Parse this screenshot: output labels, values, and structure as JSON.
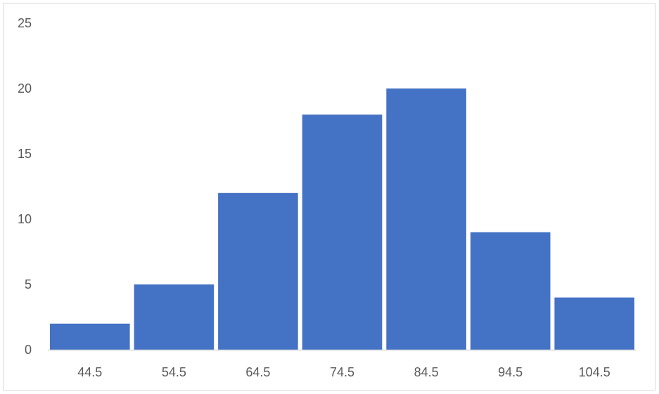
{
  "chart_data": {
    "type": "bar",
    "title": "",
    "xlabel": "",
    "ylabel": "",
    "categories": [
      "44.5",
      "54.5",
      "64.5",
      "74.5",
      "84.5",
      "94.5",
      "104.5"
    ],
    "values": [
      2,
      5,
      12,
      18,
      20,
      9,
      4
    ],
    "ylim": [
      0,
      25
    ],
    "yticks": [
      "0",
      "5",
      "10",
      "15",
      "20",
      "25"
    ],
    "ytick_values": [
      0,
      5,
      10,
      15,
      20,
      25
    ],
    "grid": false,
    "legend": "none",
    "colors": {
      "bar": "#4472C4",
      "axis": "#d9d9d9",
      "tick_text": "#595959",
      "border": "#d9d9d9"
    }
  }
}
